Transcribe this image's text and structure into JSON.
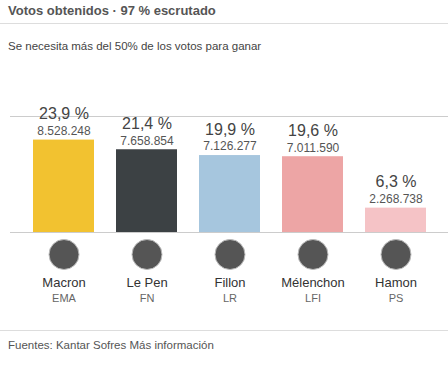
{
  "chart_data": {
    "type": "bar",
    "title": "Votos obtenidos · 97 % escrutado",
    "subtitle": "Se necesita más del 50% de los votos para ganar",
    "categories": [
      "Macron",
      "Le Pen",
      "Fillon",
      "Mélenchon",
      "Hamon"
    ],
    "parties": [
      "EMA",
      "FN",
      "LR",
      "LFI",
      "PS"
    ],
    "values": [
      23.9,
      21.4,
      19.9,
      19.6,
      6.3
    ],
    "value_labels": [
      "23,9 %",
      "21,4 %",
      "19,9 %",
      "19,6 %",
      "6,3 %"
    ],
    "votes": [
      8528248,
      7658854,
      7126277,
      7011590,
      2268738
    ],
    "vote_labels": [
      "8.528.248",
      "7.658.854",
      "7.126.277",
      "7.011.590",
      "2.268.738"
    ],
    "colors": [
      "#f2c230",
      "#3c4144",
      "#a6c6de",
      "#eda5a5",
      "#f5c3c6"
    ],
    "ylim": [
      0,
      30
    ],
    "yticks": [
      0,
      30
    ],
    "grid": true,
    "data_labels": true,
    "tick_labels": "x",
    "source": "Fuentes: Kantar Sofres",
    "source_link": "Más información"
  }
}
